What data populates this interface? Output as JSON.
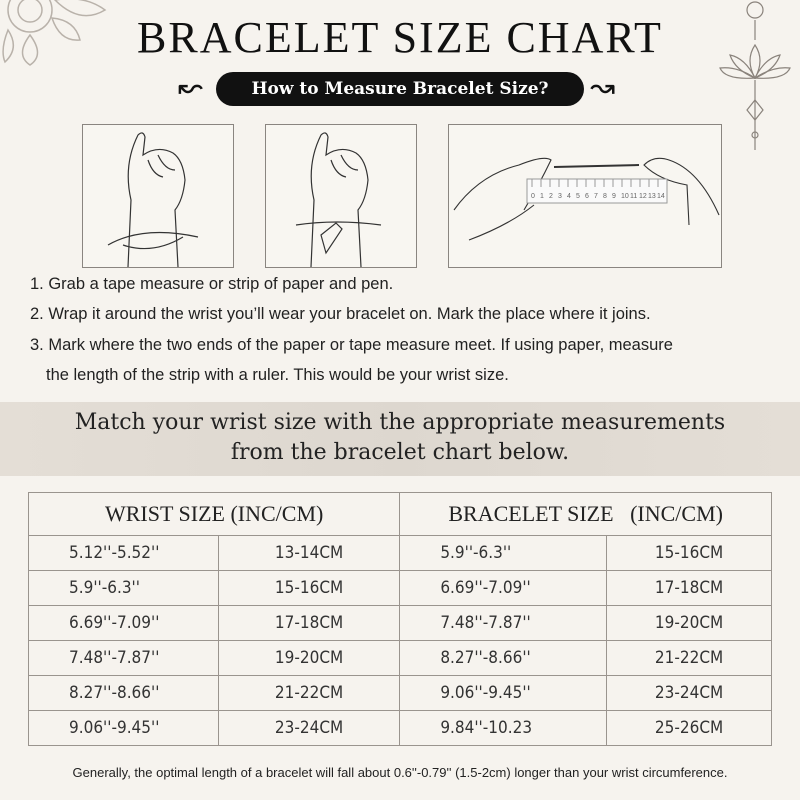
{
  "title": "BRACELET SIZE CHART",
  "subtitle": "How to Measure Bracelet Size?",
  "ruler_labels": [
    "0",
    "1",
    "2",
    "3",
    "4",
    "5",
    "6",
    "7",
    "8",
    "9",
    "10",
    "11",
    "12",
    "13",
    "14"
  ],
  "steps": [
    "1. Grab a tape measure or strip of paper and pen.",
    "2. Wrap it around the wrist you’ll wear your bracelet on. Mark the place where it joins.",
    "3. Mark where the two ends of the paper or tape measure meet. If using paper, measure",
    "the length of the strip with a ruler. This would be your wrist size."
  ],
  "band": {
    "line1": "Match your wrist size with the appropriate measurements",
    "line2": "from the bracelet chart below."
  },
  "table": {
    "headers": [
      "WRIST SIZE (INC/CM)",
      "BRACELET SIZE   (INC/CM)"
    ],
    "rows": [
      [
        "5.12''-5.52''",
        "13-14CM",
        "5.9''-6.3''",
        "15-16CM"
      ],
      [
        "5.9''-6.3''",
        "15-16CM",
        "6.69''-7.09''",
        "17-18CM"
      ],
      [
        "6.69''-7.09''",
        "17-18CM",
        "7.48''-7.87''",
        "19-20CM"
      ],
      [
        "7.48''-7.87''",
        "19-20CM",
        "8.27''-8.66''",
        "21-22CM"
      ],
      [
        "8.27''-8.66''",
        "21-22CM",
        "9.06''-9.45''",
        "23-24CM"
      ],
      [
        "9.06''-9.45''",
        "23-24CM",
        "9.84''-10.23",
        "25-26CM"
      ]
    ]
  },
  "footer": "Generally, the optimal length of a bracelet will fall about 0.6''-0.79'' (1.5-2cm) longer than your wrist circumference."
}
